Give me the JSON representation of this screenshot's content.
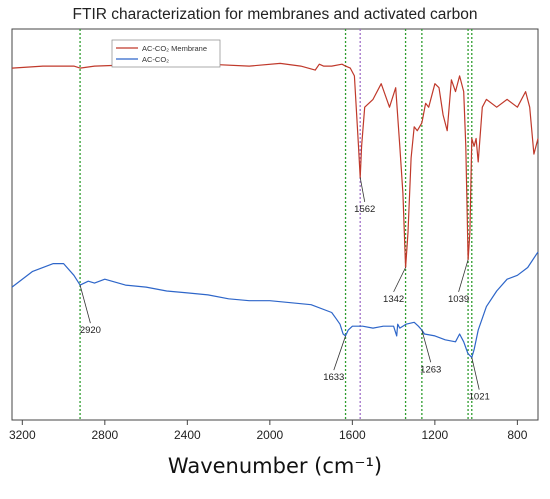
{
  "chart_data": {
    "type": "line",
    "title": "FTIR characterization for membranes and activated carbon",
    "xlabel": "Wavenumber (cm⁻¹)",
    "ylabel": "",
    "x_reversed": true,
    "xlim": [
      3250,
      700
    ],
    "ylim": [
      0,
      100
    ],
    "xticks": [
      3200,
      2800,
      2400,
      2000,
      1600,
      1200,
      800
    ],
    "grid": false,
    "legend_position": "top-left",
    "series": [
      {
        "name": "AC-CO₂ Membrane",
        "color": "#c0392b",
        "x": [
          3250,
          3100,
          2950,
          2920,
          2850,
          2700,
          2500,
          2300,
          2100,
          1950,
          1850,
          1780,
          1760,
          1740,
          1700,
          1650,
          1633,
          1610,
          1590,
          1570,
          1562,
          1555,
          1540,
          1500,
          1460,
          1420,
          1390,
          1370,
          1355,
          1342,
          1330,
          1315,
          1300,
          1285,
          1263,
          1245,
          1230,
          1200,
          1180,
          1160,
          1140,
          1120,
          1100,
          1080,
          1060,
          1050,
          1039,
          1030,
          1021,
          1010,
          1000,
          990,
          970,
          950,
          900,
          850,
          800,
          760,
          740,
          720,
          700
        ],
        "values": [
          90,
          90.5,
          90.5,
          90,
          90.5,
          90.8,
          90.5,
          91,
          90.5,
          91.2,
          90.5,
          89.5,
          91,
          90.5,
          90.5,
          91,
          90.5,
          90,
          88,
          70,
          62,
          70,
          80,
          82,
          86,
          80,
          85,
          70,
          58,
          39,
          48,
          67,
          75,
          74,
          76,
          81,
          80,
          86,
          85,
          78,
          74,
          87,
          84,
          88,
          84,
          70,
          41,
          48,
          72,
          70,
          72,
          66,
          80,
          82,
          80,
          82,
          80,
          84,
          80,
          68,
          72
        ]
      },
      {
        "name": "AC-CO₂",
        "color": "#2e66c9",
        "x": [
          3250,
          3150,
          3050,
          3000,
          2950,
          2920,
          2880,
          2850,
          2800,
          2700,
          2600,
          2500,
          2400,
          2300,
          2200,
          2100,
          2000,
          1900,
          1800,
          1700,
          1680,
          1660,
          1645,
          1633,
          1620,
          1600,
          1550,
          1500,
          1450,
          1400,
          1385,
          1380,
          1370,
          1340,
          1300,
          1280,
          1263,
          1250,
          1200,
          1150,
          1100,
          1080,
          1060,
          1040,
          1021,
          1010,
          990,
          950,
          900,
          850,
          800,
          750,
          700
        ],
        "values": [
          34,
          38,
          40,
          40,
          37,
          34.5,
          35.5,
          35,
          36,
          34.5,
          34,
          33,
          32.5,
          32,
          31,
          30.5,
          30.5,
          30,
          29.5,
          27.5,
          26,
          24.5,
          22,
          21.5,
          23,
          24,
          24,
          23.5,
          24,
          24,
          21.5,
          24.5,
          23.5,
          24.5,
          25,
          24,
          23,
          22,
          21.5,
          20.5,
          20,
          22,
          20,
          17,
          16,
          18,
          23,
          29,
          33,
          36,
          37,
          39,
          43
        ]
      }
    ],
    "vlines": [
      {
        "x": 2920,
        "color": "#2e9d2e"
      },
      {
        "x": 1633,
        "color": "#2e9d2e"
      },
      {
        "x": 1562,
        "color": "#a070c8"
      },
      {
        "x": 1342,
        "color": "#2e9d2e"
      },
      {
        "x": 1263,
        "color": "#2e9d2e"
      },
      {
        "x": 1039,
        "color": "#2e9d2e"
      },
      {
        "x": 1021,
        "color": "#2e9d2e"
      }
    ],
    "annotations": [
      {
        "label": "2920",
        "x": 2920,
        "y": 34.5,
        "tx": 2870,
        "ty": 24
      },
      {
        "label": "1633",
        "x": 1633,
        "y": 21.5,
        "tx": 1690,
        "ty": 12
      },
      {
        "label": "1562",
        "x": 1562,
        "y": 62,
        "tx": 1540,
        "ty": 55
      },
      {
        "label": "1342",
        "x": 1342,
        "y": 39,
        "tx": 1400,
        "ty": 32
      },
      {
        "label": "1263",
        "x": 1263,
        "y": 23,
        "tx": 1220,
        "ty": 14
      },
      {
        "label": "1039",
        "x": 1039,
        "y": 41,
        "tx": 1085,
        "ty": 32
      },
      {
        "label": "1021",
        "x": 1021,
        "y": 16,
        "tx": 985,
        "ty": 7
      }
    ]
  }
}
